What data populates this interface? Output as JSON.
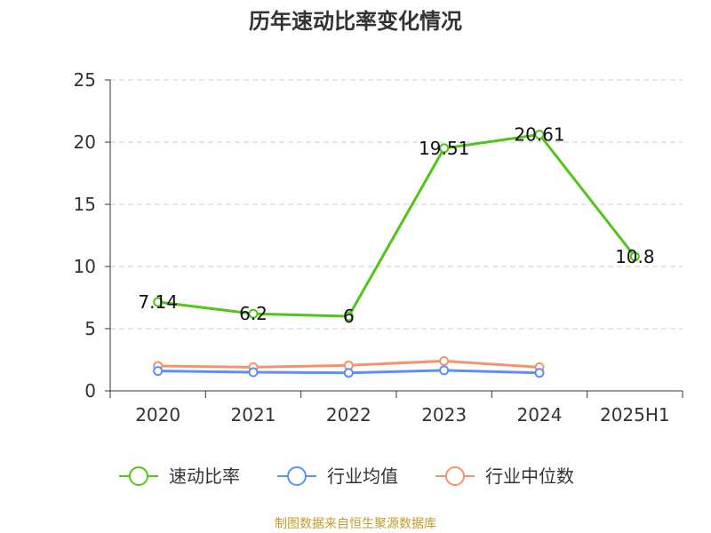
{
  "chart_data": {
    "type": "line",
    "title": "历年速动比率变化情况",
    "categories": [
      "2020",
      "2021",
      "2022",
      "2023",
      "2024",
      "2025H1"
    ],
    "ylim": [
      0,
      25
    ],
    "yticks": [
      0,
      5,
      10,
      15,
      20,
      25
    ],
    "grid": true,
    "legend_position": "bottom",
    "series": [
      {
        "name": "速动比率",
        "color": "#52c41a",
        "values": [
          7.14,
          6.2,
          6,
          19.51,
          20.61,
          10.8
        ],
        "labels": [
          "7.14",
          "6.2",
          "6",
          "19.51",
          "20.61",
          "10.8"
        ]
      },
      {
        "name": "行业均值",
        "color": "#5b8ff9",
        "values": [
          1.6,
          1.5,
          1.45,
          1.65,
          1.45,
          null
        ]
      },
      {
        "name": "行业中位数",
        "color": "#f6936a",
        "values": [
          2.0,
          1.9,
          2.05,
          2.4,
          1.9,
          null
        ]
      }
    ]
  },
  "footer": {
    "source": "制图数据来自恒生聚源数据库"
  }
}
